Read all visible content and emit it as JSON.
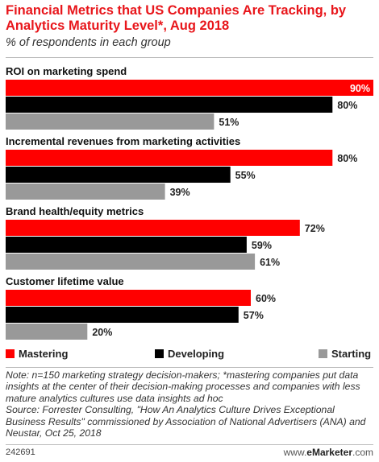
{
  "title": "Financial Metrics that US Companies Are Tracking, by Analytics Maturity Level*, Aug 2018",
  "subtitle": "% of respondents in each group",
  "chart_data": {
    "type": "bar",
    "orientation": "horizontal",
    "categories": [
      "ROI on marketing spend",
      "Incremental revenues from marketing activities",
      "Brand health/equity metrics",
      "Customer lifetime value"
    ],
    "series": [
      {
        "name": "Mastering",
        "color": "#ff0000",
        "values": [
          90,
          80,
          72,
          60
        ]
      },
      {
        "name": "Developing",
        "color": "#000000",
        "values": [
          80,
          55,
          59,
          57
        ]
      },
      {
        "name": "Starting",
        "color": "#999999",
        "values": [
          51,
          39,
          61,
          20
        ]
      }
    ],
    "value_suffix": "%",
    "xlim": [
      0,
      90
    ],
    "legend_position": "bottom"
  },
  "note": "Note: n=150 marketing strategy decision-makers; *mastering companies put data insights at the center of their decision-making processes and companies with less mature analytics cultures use data insights ad hoc",
  "source": "Source: Forrester Consulting, \"How An Analytics Culture Drives Exceptional Business Results\" commissioned by Association of National Advertisers (ANA) and Neustar, Oct 25, 2018",
  "footer": {
    "id": "242691",
    "brand_prefix": "www.",
    "brand_name": "eMarketer",
    "brand_suffix": ".com"
  }
}
